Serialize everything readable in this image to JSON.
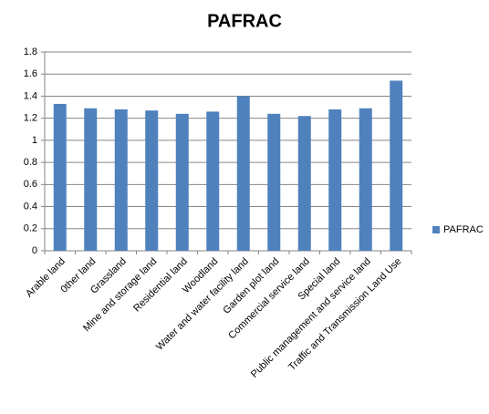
{
  "chart_data": {
    "type": "bar",
    "title": "PAFRAC",
    "categories": [
      "Arable land",
      "0ther land",
      "Grassland",
      "Mine and storage land",
      "Residential land",
      "Woodland",
      "Water and water facility land",
      "Garden plot land",
      "Commercial service land",
      "Special land",
      "Public management and service land",
      "Traffic and Transmission Land Use"
    ],
    "series": [
      {
        "name": "PAFRAC",
        "color": "#4f81bd",
        "values": [
          1.33,
          1.29,
          1.28,
          1.27,
          1.24,
          1.26,
          1.4,
          1.24,
          1.22,
          1.28,
          1.29,
          1.54
        ]
      }
    ],
    "ylim": [
      0,
      1.8
    ],
    "yticks": [
      0,
      0.2,
      0.4,
      0.6,
      0.8,
      1,
      1.2,
      1.4,
      1.6,
      1.8
    ],
    "grid": true,
    "legend": "right"
  }
}
